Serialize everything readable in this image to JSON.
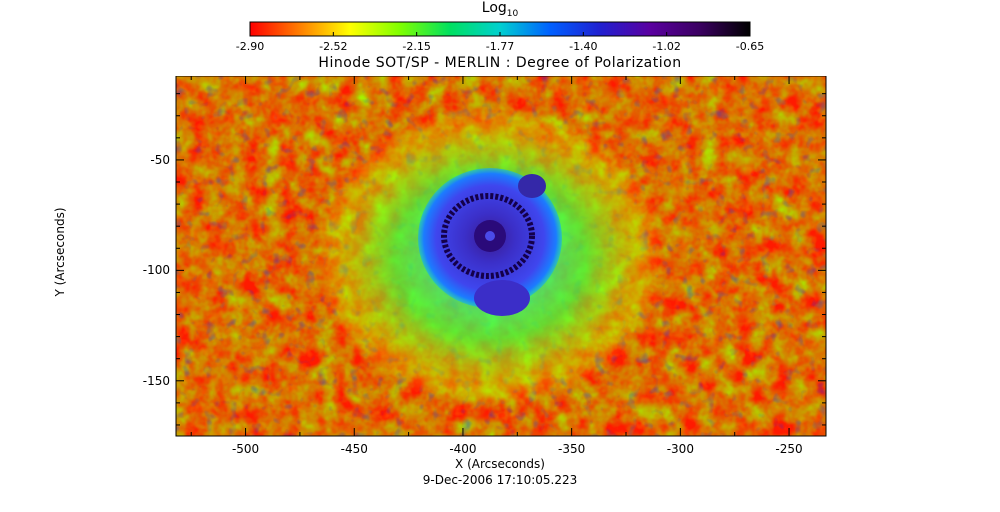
{
  "colorbar": {
    "label_base": "Log",
    "label_sub": "10",
    "colors": [
      "#ff0000",
      "#ff7f00",
      "#ffff00",
      "#7fff00",
      "#00e060",
      "#00d0d0",
      "#0060ff",
      "#2020d0",
      "#5a00a0",
      "#3a0060",
      "#000000"
    ],
    "ticks": [
      "-2.90",
      "-2.52",
      "-2.15",
      "-1.77",
      "-1.40",
      "-1.02",
      "-0.65"
    ]
  },
  "title": "Hinode SOT/SP - MERLIN : Degree of Polarization",
  "x_axis": {
    "label": "X (Arcseconds)",
    "ticks": [
      "-500",
      "-450",
      "-400",
      "-350",
      "-300",
      "-250"
    ]
  },
  "y_axis": {
    "label": "Y (Arcseconds)",
    "ticks": [
      "-50",
      "-100",
      "-150"
    ]
  },
  "timestamp": "9-Dec-2006 17:10:05.223",
  "image": {
    "description_colors": {
      "background": "#ff1a00",
      "mid": "#9fff00",
      "umbra": "#2a0080",
      "penumbra": "#3a36e0"
    }
  }
}
